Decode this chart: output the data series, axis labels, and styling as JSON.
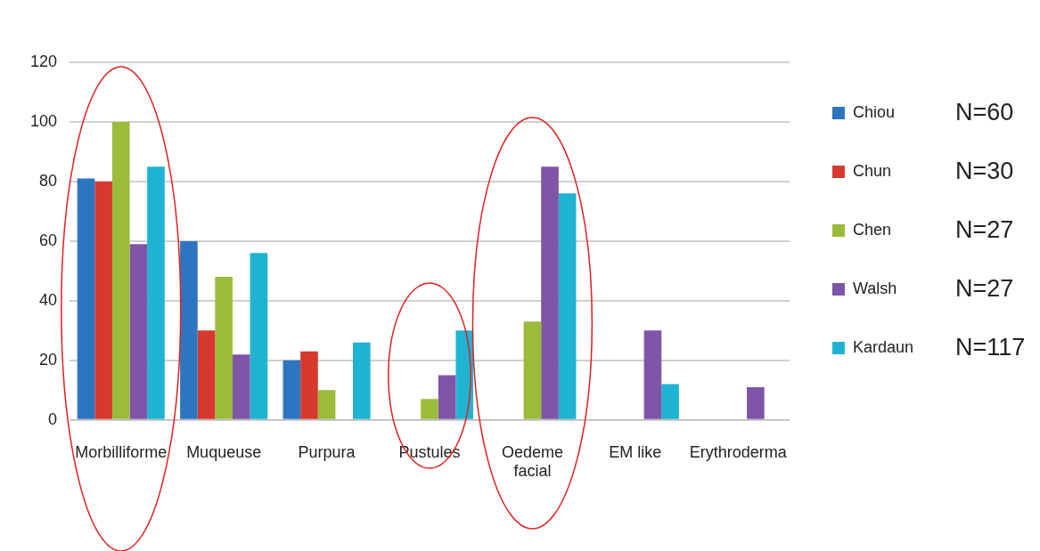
{
  "chart_data": {
    "type": "bar",
    "categories": [
      "Morbilliforme",
      "Muqueuse",
      "Purpura",
      "Pustules",
      "Oedeme facial",
      "EM like",
      "Erythroderma"
    ],
    "series": [
      {
        "name": "Chiou",
        "color": "#2e75c0",
        "values": [
          81,
          60,
          20,
          null,
          null,
          null,
          null
        ]
      },
      {
        "name": "Chun",
        "color": "#d63a2e",
        "values": [
          80,
          30,
          23,
          null,
          null,
          null,
          null
        ]
      },
      {
        "name": "Chen",
        "color": "#9bbb3b",
        "values": [
          100,
          48,
          10,
          7,
          33,
          null,
          null
        ]
      },
      {
        "name": "Walsh",
        "color": "#7f55a8",
        "values": [
          59,
          22,
          null,
          15,
          85,
          30,
          11
        ]
      },
      {
        "name": "Kardaun",
        "color": "#1fb3d3",
        "values": [
          85,
          56,
          26,
          30,
          76,
          12,
          null
        ]
      }
    ],
    "ylim": [
      0,
      120
    ],
    "yticks": [
      0,
      20,
      40,
      60,
      80,
      100,
      120
    ],
    "grid": "y",
    "legend": "top right",
    "annotations": [
      "N=60",
      "N=30",
      "N=27",
      "N=27",
      "N=117"
    ]
  }
}
